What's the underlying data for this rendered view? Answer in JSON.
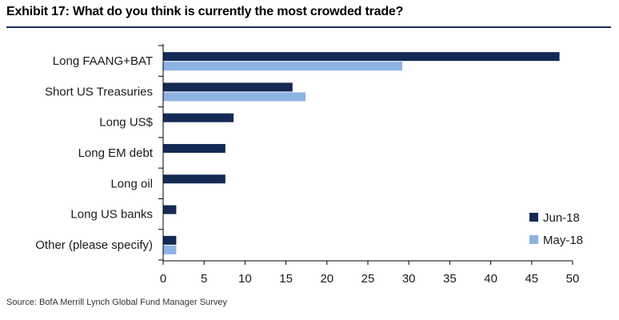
{
  "title": "Exhibit 17: What do you think is currently the most crowded trade?",
  "source": "Source:  BofA Merrill Lynch Global Fund Manager Survey",
  "colors": {
    "series1": "#142a55",
    "series2": "#8db3e2",
    "rule": "#1c2f5b"
  },
  "chart_data": {
    "type": "bar",
    "orientation": "horizontal",
    "categories": [
      "Long FAANG+BAT",
      "Short US Treasuries",
      "Long US$",
      "Long EM debt",
      "Long oil",
      "Long US banks",
      "Other (please specify)"
    ],
    "series": [
      {
        "name": "Jun-18",
        "values": [
          48.4,
          15.8,
          8.6,
          7.6,
          7.6,
          1.6,
          1.6
        ]
      },
      {
        "name": "May-18",
        "values": [
          29.2,
          17.4,
          null,
          null,
          null,
          null,
          1.6
        ]
      }
    ],
    "xlim": [
      0,
      50
    ],
    "xticks": [
      0,
      5,
      10,
      15,
      20,
      25,
      30,
      35,
      40,
      45,
      50
    ],
    "legend": "bottom-right",
    "xlabel": "",
    "ylabel": ""
  }
}
